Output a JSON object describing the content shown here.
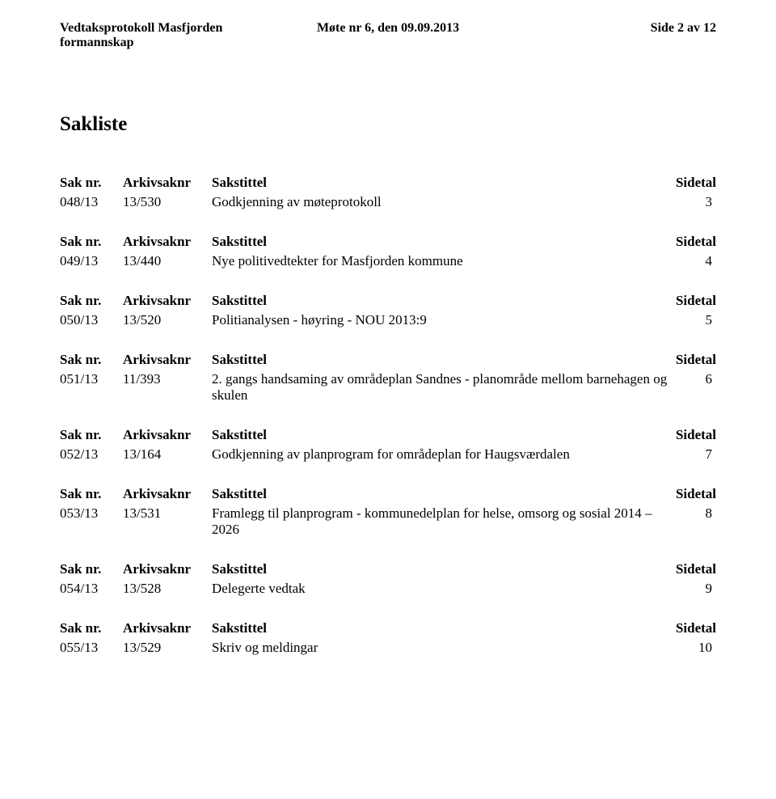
{
  "header": {
    "left": "Vedtaksprotokoll Masfjorden formannskap",
    "middle": "Møte nr 6,  den 09.09.2013",
    "right": "Side 2 av 12"
  },
  "title": "Sakliste",
  "col_labels": {
    "saknr": "Sak nr.",
    "arkiv": "Arkivsaknr",
    "sakstittel": "Sakstittel",
    "sidetal": "Sidetal"
  },
  "items": [
    {
      "saknr": "048/13",
      "arkiv": "13/530",
      "title": "Godkjenning av møteprotokoll",
      "page": "3"
    },
    {
      "saknr": "049/13",
      "arkiv": "13/440",
      "title": "Nye politivedtekter for Masfjorden kommune",
      "page": "4"
    },
    {
      "saknr": "050/13",
      "arkiv": "13/520",
      "title": "Politianalysen - høyring - NOU 2013:9",
      "page": "5"
    },
    {
      "saknr": "051/13",
      "arkiv": "11/393",
      "title": "2. gangs handsaming av områdeplan Sandnes - planområde mellom barnehagen og skulen",
      "page": "6"
    },
    {
      "saknr": "052/13",
      "arkiv": "13/164",
      "title": "Godkjenning av planprogram for områdeplan for Haugsværdalen",
      "page": "7"
    },
    {
      "saknr": "053/13",
      "arkiv": "13/531",
      "title": "Framlegg til planprogram - kommunedelplan for helse, omsorg og sosial  2014 – 2026",
      "page": "8"
    },
    {
      "saknr": "054/13",
      "arkiv": "13/528",
      "title": "Delegerte vedtak",
      "page": "9"
    },
    {
      "saknr": "055/13",
      "arkiv": "13/529",
      "title": "Skriv og meldingar",
      "page": "10"
    }
  ]
}
